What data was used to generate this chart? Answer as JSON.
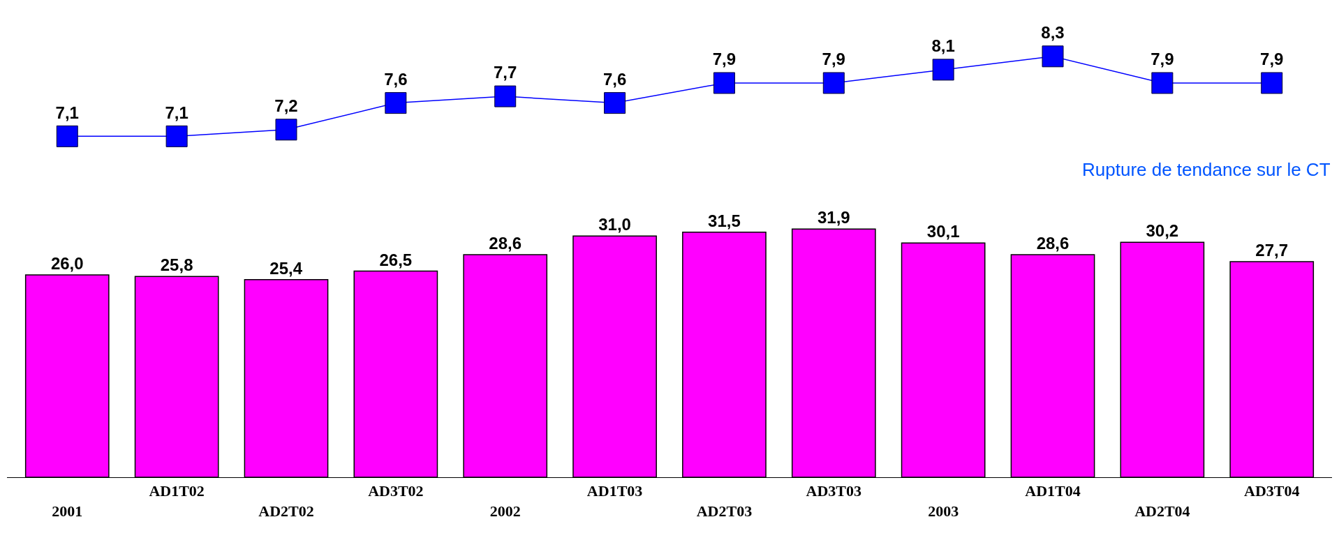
{
  "chart_data": [
    {
      "type": "line",
      "categories": [
        null,
        null,
        null,
        null,
        null,
        null,
        null,
        null,
        null,
        null,
        null,
        null
      ],
      "series": [
        {
          "color": "#0000ff",
          "values": [
            7.1,
            7.1,
            7.2,
            7.6,
            7.7,
            7.6,
            7.9,
            7.9,
            8.1,
            8.3,
            7.9,
            7.9
          ],
          "value_labels": [
            "7,1",
            "7,1",
            "7,2",
            "7,6",
            "7,7",
            "7,6",
            "7,9",
            "7,9",
            "8,1",
            "8,3",
            "7,9",
            "7,9"
          ]
        }
      ],
      "marker": "square",
      "tick_labels": false,
      "annotations": [
        "Rupture de tendance sur le CT"
      ]
    },
    {
      "type": "bar",
      "categories": [
        "2001",
        "AD1T02",
        "AD2T02",
        "AD3T02",
        "2002",
        "AD1T03",
        "AD2T03",
        "AD3T03",
        "2003",
        "AD1T04",
        "AD2T04",
        "AD3T04"
      ],
      "series": [
        {
          "color": "#ff00ff",
          "values": [
            26.0,
            25.8,
            25.4,
            26.5,
            28.6,
            31.0,
            31.5,
            31.9,
            30.1,
            28.6,
            30.2,
            27.7
          ],
          "value_labels": [
            "26,0",
            "25,8",
            "25,4",
            "26,5",
            "28,6",
            "31,0",
            "31,5",
            "31,9",
            "30,1",
            "28,6",
            "30,2",
            "27,7"
          ]
        }
      ],
      "tick_labels": "x"
    }
  ]
}
